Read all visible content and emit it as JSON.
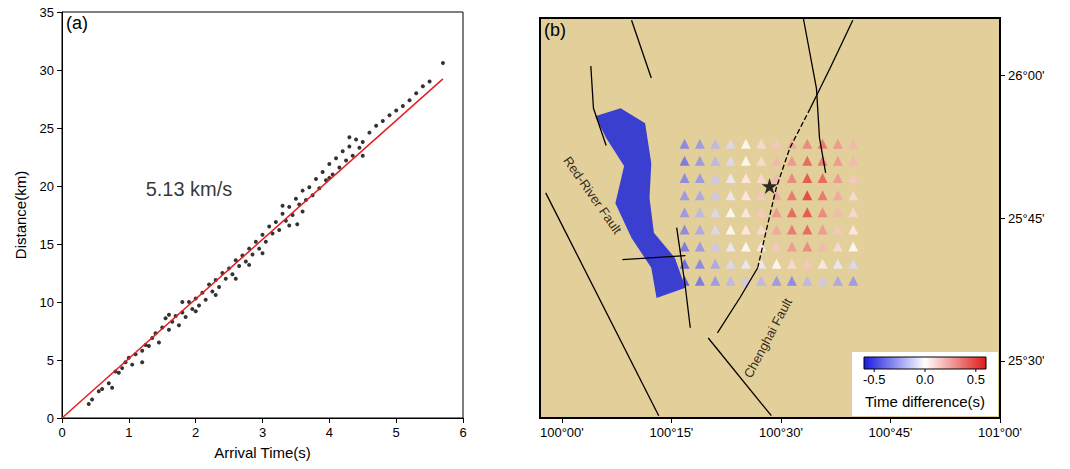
{
  "chart_data": [
    {
      "type": "scatter",
      "panel": "(a)",
      "x_label": "Arrival Time(s)",
      "y_label": "Distance(km)",
      "xlim": [
        0,
        6
      ],
      "xticks": [
        0,
        1,
        2,
        3,
        4,
        5,
        6
      ],
      "ylim": [
        0,
        35
      ],
      "yticks": [
        0,
        5,
        10,
        15,
        20,
        25,
        30,
        35
      ],
      "grid": false,
      "color": "#000000",
      "marker": "circle",
      "points": [
        [
          0.4,
          1.2
        ],
        [
          0.45,
          1.6
        ],
        [
          0.55,
          2.3
        ],
        [
          0.6,
          2.5
        ],
        [
          0.7,
          3.0
        ],
        [
          0.75,
          2.6
        ],
        [
          0.8,
          4.0
        ],
        [
          0.85,
          3.9
        ],
        [
          0.9,
          4.3
        ],
        [
          0.95,
          4.8
        ],
        [
          1.0,
          5.2
        ],
        [
          1.05,
          4.6
        ],
        [
          1.1,
          5.5
        ],
        [
          1.2,
          5.8
        ],
        [
          1.25,
          6.3
        ],
        [
          1.3,
          6.2
        ],
        [
          1.35,
          6.9
        ],
        [
          1.4,
          7.3
        ],
        [
          1.45,
          6.5
        ],
        [
          1.5,
          7.8
        ],
        [
          1.55,
          8.6
        ],
        [
          1.6,
          7.6
        ],
        [
          1.65,
          8.3
        ],
        [
          1.7,
          8.8
        ],
        [
          1.75,
          8.0
        ],
        [
          1.8,
          9.1
        ],
        [
          1.85,
          8.7
        ],
        [
          1.9,
          10.0
        ],
        [
          1.95,
          9.4
        ],
        [
          2.0,
          10.3
        ],
        [
          2.05,
          9.7
        ],
        [
          2.1,
          10.8
        ],
        [
          2.15,
          10.2
        ],
        [
          2.2,
          11.5
        ],
        [
          2.25,
          10.9
        ],
        [
          2.3,
          11.9
        ],
        [
          2.35,
          11.3
        ],
        [
          2.4,
          12.5
        ],
        [
          2.45,
          12.0
        ],
        [
          2.5,
          12.9
        ],
        [
          2.55,
          12.4
        ],
        [
          2.6,
          13.6
        ],
        [
          2.65,
          13.1
        ],
        [
          2.7,
          14.0
        ],
        [
          2.75,
          13.5
        ],
        [
          2.8,
          14.6
        ],
        [
          2.85,
          14.1
        ],
        [
          2.9,
          15.2
        ],
        [
          2.95,
          14.6
        ],
        [
          3.0,
          15.8
        ],
        [
          3.05,
          15.2
        ],
        [
          3.1,
          16.5
        ],
        [
          3.15,
          15.9
        ],
        [
          3.2,
          16.9
        ],
        [
          3.25,
          16.2
        ],
        [
          3.3,
          17.6
        ],
        [
          3.35,
          17.0
        ],
        [
          3.4,
          18.2
        ],
        [
          3.45,
          17.5
        ],
        [
          3.5,
          18.9
        ],
        [
          3.52,
          16.7
        ],
        [
          3.55,
          18.4
        ],
        [
          3.6,
          19.6
        ],
        [
          3.65,
          18.8
        ],
        [
          3.7,
          19.9
        ],
        [
          3.75,
          19.2
        ],
        [
          3.8,
          20.6
        ],
        [
          3.85,
          19.8
        ],
        [
          3.9,
          21.2
        ],
        [
          3.95,
          20.5
        ],
        [
          4.0,
          21.9
        ],
        [
          4.05,
          21.0
        ],
        [
          4.1,
          22.4
        ],
        [
          4.15,
          21.6
        ],
        [
          4.2,
          23.0
        ],
        [
          4.25,
          22.2
        ],
        [
          4.3,
          23.4
        ],
        [
          4.35,
          22.6
        ],
        [
          4.4,
          24.0
        ],
        [
          4.45,
          23.3
        ],
        [
          4.5,
          23.8
        ],
        [
          4.6,
          24.6
        ],
        [
          4.7,
          25.2
        ],
        [
          4.8,
          25.6
        ],
        [
          4.9,
          26.1
        ],
        [
          5.0,
          26.5
        ],
        [
          5.1,
          26.9
        ],
        [
          5.2,
          27.4
        ],
        [
          5.3,
          28.0
        ],
        [
          5.4,
          28.6
        ],
        [
          5.5,
          29.0
        ],
        [
          5.7,
          30.6
        ],
        [
          3.0,
          14.2
        ],
        [
          2.0,
          9.2
        ],
        [
          1.6,
          8.9
        ],
        [
          2.8,
          13.2
        ],
        [
          3.4,
          16.6
        ],
        [
          4.0,
          20.7
        ],
        [
          4.3,
          24.2
        ],
        [
          3.6,
          17.8
        ],
        [
          2.3,
          10.6
        ],
        [
          1.2,
          4.8
        ],
        [
          4.5,
          22.6
        ],
        [
          3.3,
          18.3
        ],
        [
          2.6,
          12.0
        ],
        [
          1.8,
          10.0
        ]
      ],
      "fit_line": {
        "x": [
          0,
          5.7
        ],
        "y": [
          0,
          29.24
        ],
        "color": "#e02020",
        "line_style": "solid"
      },
      "annotations": [
        {
          "text": "5.13 km/s",
          "x": 1.9,
          "y": 19.7
        }
      ]
    },
    {
      "type": "map",
      "panel": "(b)",
      "xlim": [
        99.95,
        101.0
      ],
      "xticks": [
        {
          "value": 100,
          "label": "100°00'"
        },
        {
          "value": 100.25,
          "label": "100°15'"
        },
        {
          "value": 100.5,
          "label": "100°30'"
        },
        {
          "value": 100.75,
          "label": "100°45'"
        },
        {
          "value": 101,
          "label": "101°00'"
        }
      ],
      "ylim": [
        25.4,
        26.1
      ],
      "yticks": [
        {
          "value": 25.5,
          "label": "25°30'"
        },
        {
          "value": 25.75,
          "label": "25°45'"
        },
        {
          "value": 26,
          "label": "26°00'"
        }
      ],
      "grid": false,
      "marker": "triangle",
      "station_lon": [
        100.28,
        100.315,
        100.35,
        100.385,
        100.42,
        100.455,
        100.49,
        100.525,
        100.56,
        100.595,
        100.63,
        100.665
      ],
      "station_lat": [
        25.64,
        25.67,
        25.7,
        25.73,
        25.76,
        25.79,
        25.82,
        25.85,
        25.88
      ],
      "time_difference": [
        [
          -0.5,
          -0.4,
          -0.3,
          -0.2,
          -0.15,
          -0.2,
          -0.3,
          -0.35,
          -0.2,
          -0.15,
          -0.25,
          -0.3
        ],
        [
          -0.45,
          -0.35,
          -0.25,
          -0.1,
          -0.05,
          -0.05,
          0.0,
          0.1,
          0.15,
          0.05,
          -0.05,
          -0.1
        ],
        [
          -0.4,
          -0.3,
          -0.15,
          -0.05,
          0.0,
          0.05,
          0.15,
          0.3,
          0.35,
          0.2,
          0.1,
          0.0
        ],
        [
          -0.35,
          -0.25,
          -0.1,
          0.0,
          0.05,
          0.1,
          0.25,
          0.4,
          0.45,
          0.3,
          0.15,
          0.05
        ],
        [
          -0.3,
          -0.2,
          -0.1,
          0.0,
          0.05,
          0.15,
          0.3,
          0.45,
          0.5,
          0.35,
          0.2,
          0.1
        ],
        [
          -0.3,
          -0.25,
          -0.15,
          -0.05,
          0.05,
          0.15,
          0.25,
          0.4,
          0.55,
          0.4,
          0.25,
          0.1
        ],
        [
          -0.35,
          -0.3,
          -0.15,
          -0.05,
          0.05,
          0.1,
          0.2,
          0.35,
          0.5,
          0.45,
          0.3,
          0.15
        ],
        [
          -0.4,
          -0.3,
          -0.2,
          -0.1,
          0.0,
          0.1,
          0.2,
          0.3,
          0.45,
          0.4,
          0.3,
          0.2
        ],
        [
          -0.35,
          -0.3,
          -0.2,
          -0.1,
          0.0,
          0.1,
          0.15,
          0.25,
          0.35,
          0.4,
          0.3,
          0.2
        ]
      ],
      "star": {
        "coords": [
          100.474,
          25.806
        ],
        "marker": "star",
        "color": "#000000"
      },
      "zone": {
        "color": "#3a3fd0",
        "coords": [
          [
            100.076,
            25.928
          ],
          [
            100.134,
            25.942
          ],
          [
            100.19,
            25.916
          ],
          [
            100.204,
            25.846
          ],
          [
            100.2,
            25.785
          ],
          [
            100.21,
            25.724
          ],
          [
            100.258,
            25.68
          ],
          [
            100.282,
            25.628
          ],
          [
            100.216,
            25.61
          ],
          [
            100.204,
            25.663
          ],
          [
            100.159,
            25.715
          ],
          [
            100.122,
            25.776
          ],
          [
            100.142,
            25.841
          ],
          [
            100.101,
            25.89
          ]
        ]
      },
      "faults": [
        {
          "coords": [
            [
              99.963,
              25.794
            ],
            [
              100.221,
              25.404
            ]
          ],
          "line_style": "solid"
        },
        {
          "coords": [
            [
              100.066,
              26.016
            ],
            [
              100.072,
              25.942
            ],
            [
              100.101,
              25.877
            ]
          ],
          "line_style": "solid"
        },
        {
          "coords": [
            [
              100.159,
              26.096
            ],
            [
              100.204,
              25.995
            ]
          ],
          "line_style": "solid"
        },
        {
          "coords": [
            [
              100.551,
              26.1
            ],
            [
              100.581,
              25.977
            ],
            [
              100.588,
              25.89
            ],
            [
              100.602,
              25.829
            ]
          ],
          "line_style": "solid"
        },
        {
          "coords": [
            [
              100.664,
              26.096
            ],
            [
              100.612,
              26.012
            ],
            [
              100.567,
              25.942
            ]
          ],
          "line_style": "solid"
        },
        {
          "coords": [
            [
              100.567,
              25.942
            ],
            [
              100.52,
              25.872
            ],
            [
              100.489,
              25.802
            ],
            [
              100.468,
              25.733
            ],
            [
              100.447,
              25.663
            ]
          ],
          "line_style": "dashed"
        },
        {
          "coords": [
            [
              100.447,
              25.663
            ],
            [
              100.406,
              25.61
            ],
            [
              100.355,
              25.549
            ]
          ],
          "line_style": "solid"
        },
        {
          "coords": [
            [
              100.334,
              25.54
            ],
            [
              100.478,
              25.404
            ]
          ],
          "line_style": "solid"
        },
        {
          "coords": [
            [
              100.138,
              25.677
            ],
            [
              100.282,
              25.684
            ]
          ],
          "line_style": "solid"
        },
        {
          "coords": [
            [
              100.262,
              25.733
            ],
            [
              100.282,
              25.628
            ],
            [
              100.293,
              25.558
            ]
          ],
          "line_style": "solid"
        }
      ],
      "fault_labels": [
        {
          "text": "Red-River Fault",
          "x": 100.07,
          "y": 25.79
        },
        {
          "text": "Chenghai Fault",
          "x": 100.47,
          "y": 25.54
        }
      ],
      "colorbar": {
        "title": "Time difference(s)",
        "range": [
          -0.6,
          0.6
        ],
        "ticks": [
          -0.5,
          {
            "value": 0,
            "label": "0.0"
          },
          0.5
        ],
        "colors": [
          "#1a1ae0",
          "#ffffff",
          "#e01a1a"
        ]
      }
    }
  ]
}
